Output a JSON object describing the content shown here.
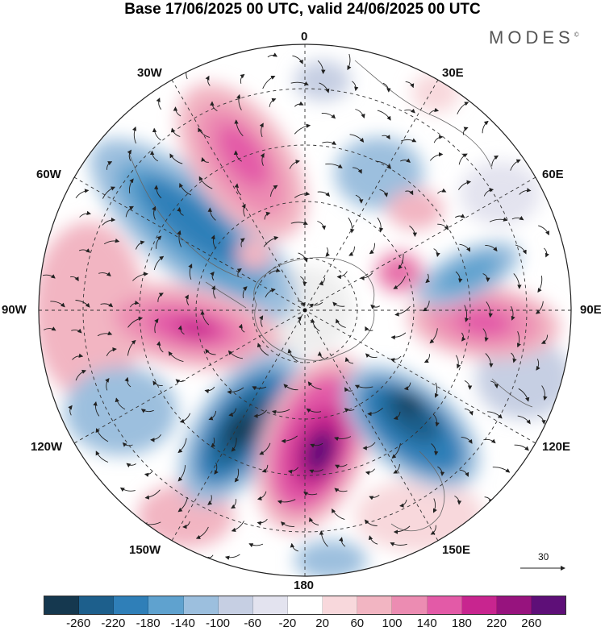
{
  "title": "Base 17/06/2025 00 UTC, valid 24/06/2025 00 UTC",
  "brand": "MODES",
  "brand_mark": "©",
  "meridian_labels": {
    "m0": "0",
    "m30e": "30E",
    "m60e": "60E",
    "m90e": "90E",
    "m120e": "120E",
    "m150e": "150E",
    "m180": "180",
    "m150w": "150W",
    "m120w": "120W",
    "m90w": "90W",
    "m60w": "60W",
    "m30w": "30W"
  },
  "reference_vector": "30",
  "colorbar": {
    "colors": [
      "#15384f",
      "#1d5f8c",
      "#2f7fb8",
      "#5fa2cf",
      "#9cbfde",
      "#c6cfe3",
      "#e3e3ef",
      "#ffffff",
      "#f8d8dc",
      "#f2b5c2",
      "#ec8cb2",
      "#e35aa7",
      "#c8258f",
      "#97137e",
      "#5e0f78"
    ],
    "tick_labels": [
      "-260",
      "-220",
      "-180",
      "-140",
      "-100",
      "-60",
      "-20",
      "20",
      "60",
      "100",
      "140",
      "180",
      "220",
      "260"
    ]
  },
  "icons": {
    "north_pole_marker": "dot-icon",
    "reference_arrow": "arrow-right-icon"
  }
}
